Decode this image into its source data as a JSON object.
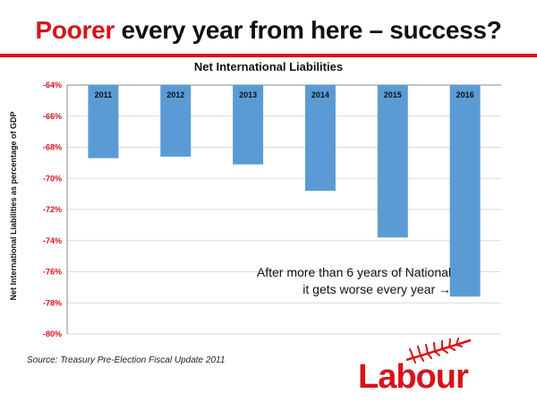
{
  "slide": {
    "title_accent": "Poorer",
    "title_rest": " every year from here – success?",
    "annotation_line1": "After more than 6 years of National",
    "annotation_line2": "it gets worse every year →",
    "source": "Source:  Treasury Pre-Election Fiscal Update 2011",
    "logo_text": "Labour"
  },
  "colors": {
    "accent": "#d7141a",
    "bar": "#5b9bd5",
    "gridline": "#d9d9d9",
    "axis": "#888888"
  },
  "chart_data": {
    "type": "bar",
    "title": "Net International Liabilities",
    "ylabel": "Net International Liabilities as percentage of GDP",
    "xlabel": "",
    "categories": [
      "2011",
      "2012",
      "2013",
      "2014",
      "2015",
      "2016"
    ],
    "values": [
      -68.7,
      -68.6,
      -69.1,
      -70.8,
      -73.8,
      -77.6
    ],
    "ylim": [
      -80,
      -64
    ],
    "yticks": [
      -64,
      -66,
      -68,
      -70,
      -72,
      -74,
      -76,
      -78,
      -80
    ],
    "ytick_labels": [
      "-64%",
      "-66%",
      "-68%",
      "-70%",
      "-72%",
      "-74%",
      "-76%",
      "-78%",
      "-80%"
    ],
    "category_labels_position": "top",
    "grid": true,
    "legend": false
  }
}
